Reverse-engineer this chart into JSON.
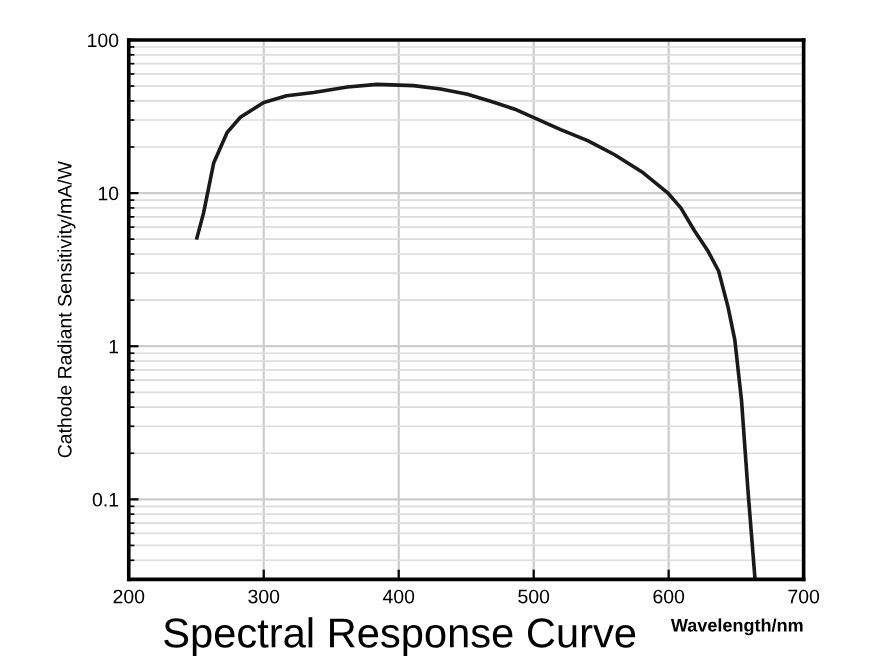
{
  "chart_data": {
    "type": "line",
    "title": "Spectral Response Curve",
    "xlabel": "Wavelength/nm",
    "ylabel": "Cathode Radiant Sensitivity/mA/W",
    "log": "y",
    "xlim": [
      200,
      700
    ],
    "xticks": [
      200,
      300,
      400,
      500,
      600,
      700
    ],
    "ylim": [
      0.03,
      100
    ],
    "yticks": [
      0.1,
      1,
      10,
      100
    ],
    "grid": true,
    "series": [
      {
        "color": "#1a1a1a",
        "x": [
          250.5,
          255.4,
          262.9,
          272.8,
          282.7,
          300,
          317,
          337,
          362,
          384,
          411,
          431,
          451,
          471,
          486,
          500.5,
          520,
          540,
          560,
          580,
          599.5,
          609,
          619,
          629,
          637,
          644,
          649,
          654,
          659,
          664
        ],
        "values": [
          5.1,
          7.4,
          15.7,
          24.8,
          31.3,
          39,
          43.2,
          45.4,
          49.3,
          51.3,
          50.3,
          47.8,
          44.2,
          39,
          35.3,
          31,
          26,
          22,
          17.8,
          13.8,
          10,
          8,
          5.7,
          4.2,
          3.1,
          1.8,
          1.1,
          0.44,
          0.107,
          0.03
        ]
      }
    ]
  }
}
